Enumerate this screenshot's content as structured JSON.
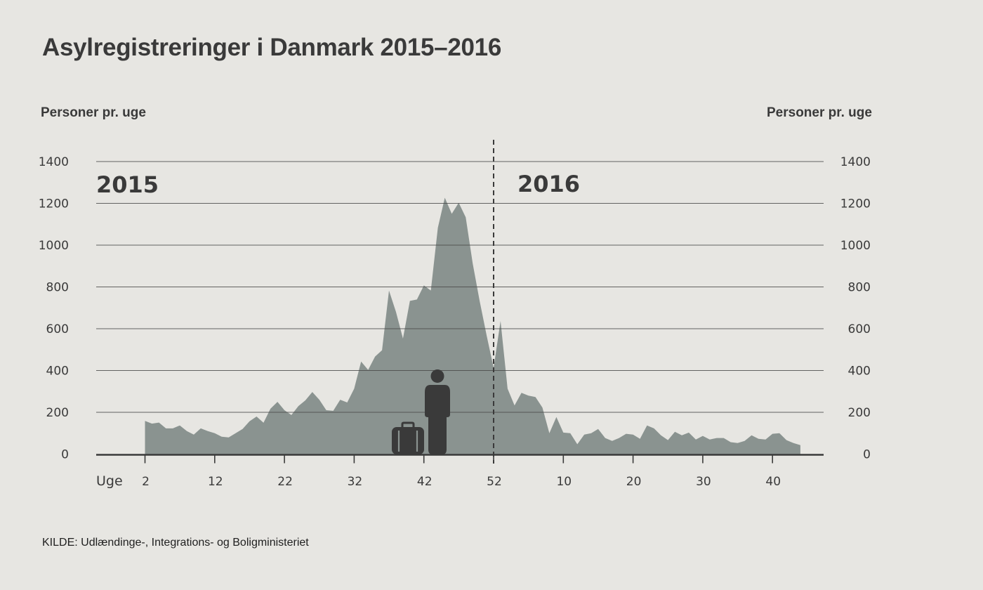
{
  "chart_data": {
    "type": "area",
    "title": "Asylregistreringer i Danmark 2015–2016",
    "ylabel_left": "Personer pr. uge",
    "ylabel_right": "Personer pr. uge",
    "xlabel": "Uge",
    "ylim": [
      0,
      1400
    ],
    "yticks": [
      0,
      200,
      400,
      600,
      800,
      1000,
      1200,
      1400
    ],
    "ytick_labels": [
      "0",
      "200",
      "400",
      "600",
      "800",
      "1000",
      "1200",
      "1400"
    ],
    "grid": true,
    "xtick_labels": [
      "2",
      "12",
      "22",
      "32",
      "42",
      "52",
      "10",
      "20",
      "30",
      "40"
    ],
    "xtick_index": [
      2,
      12,
      22,
      32,
      42,
      52,
      62,
      72,
      82,
      92
    ],
    "divider_index": 52,
    "year_labels": [
      "2015",
      "2016"
    ],
    "series": [
      {
        "name": "2015",
        "weeks": [
          2,
          3,
          4,
          5,
          6,
          7,
          8,
          9,
          10,
          11,
          12,
          13,
          14,
          15,
          16,
          17,
          18,
          19,
          20,
          21,
          22,
          23,
          24,
          25,
          26,
          27,
          28,
          29,
          30,
          31,
          32,
          33,
          34,
          35,
          36,
          37,
          38,
          39,
          40,
          41,
          42,
          43,
          44,
          45,
          46,
          47,
          48,
          49,
          50,
          51,
          52
        ],
        "values": [
          159,
          146,
          151,
          123,
          123,
          137,
          110,
          93,
          123,
          110,
          100,
          83,
          80,
          100,
          120,
          157,
          180,
          150,
          217,
          250,
          210,
          187,
          230,
          257,
          297,
          260,
          210,
          207,
          260,
          247,
          313,
          443,
          403,
          467,
          497,
          783,
          680,
          553,
          733,
          740,
          807,
          783,
          1083,
          1227,
          1150,
          1203,
          1133,
          913,
          733,
          567,
          413
        ]
      },
      {
        "name": "2016",
        "weeks": [
          1,
          2,
          3,
          4,
          5,
          6,
          7,
          8,
          9,
          10,
          11,
          12,
          13,
          14,
          15,
          16,
          17,
          18,
          19,
          20,
          21,
          22,
          23,
          24,
          25,
          26,
          27,
          28,
          29,
          30,
          31,
          32,
          33,
          34,
          35,
          36,
          37,
          38,
          39,
          40,
          41,
          42,
          43,
          44
        ],
        "values": [
          637,
          313,
          233,
          293,
          280,
          273,
          223,
          100,
          177,
          103,
          100,
          47,
          93,
          100,
          120,
          77,
          63,
          77,
          97,
          93,
          73,
          137,
          123,
          90,
          67,
          107,
          90,
          103,
          70,
          87,
          70,
          77,
          77,
          57,
          53,
          63,
          90,
          73,
          70,
          97,
          100,
          67,
          53,
          43
        ]
      }
    ],
    "colors": {
      "background": "#E7E6E2",
      "area": "#8A9390",
      "text": "#3a3a3a",
      "grid": "#555555"
    },
    "source": "KILDE: Udlændinge-, Integrations- og Boligministeriet",
    "pictogram_icons": [
      "person-icon",
      "suitcase-icon"
    ]
  }
}
